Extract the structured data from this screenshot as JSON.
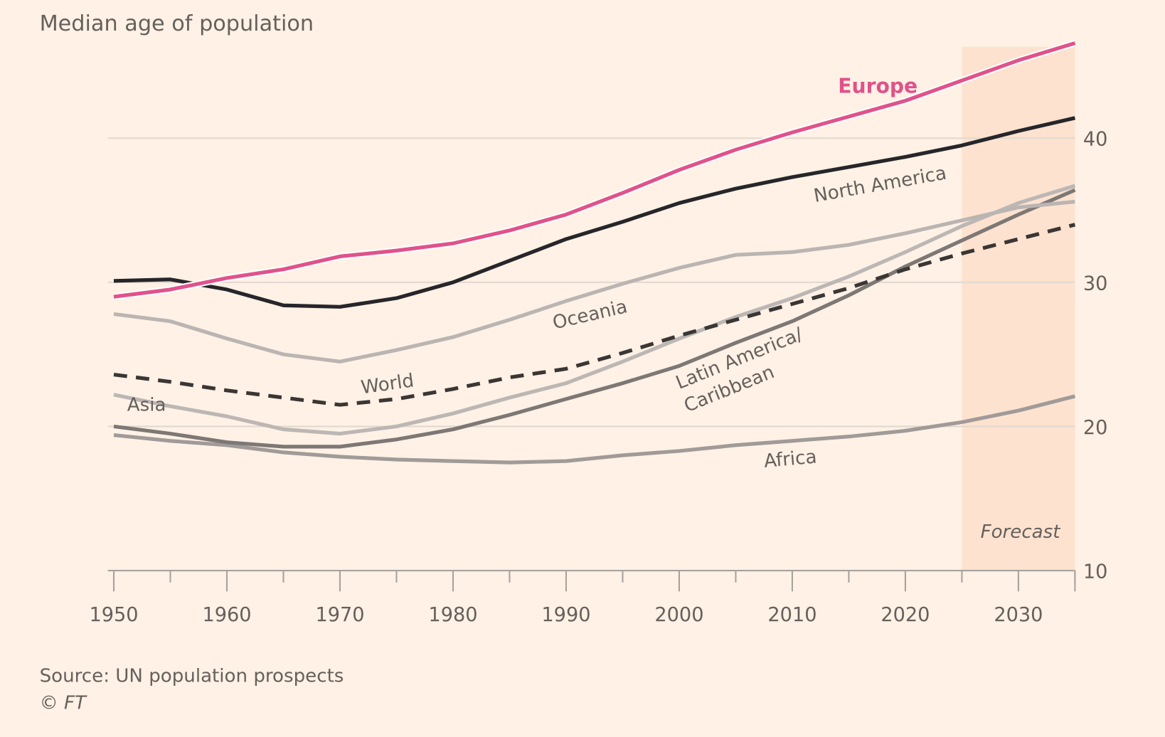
{
  "chart_data": {
    "type": "line",
    "title": "Median age of population",
    "xlabel": "",
    "ylabel": "",
    "xlim": [
      1950,
      2035
    ],
    "ylim": [
      10,
      46
    ],
    "x_ticks": [
      "1950",
      "1960",
      "1970",
      "1980",
      "1990",
      "2000",
      "2010",
      "2020",
      "2030"
    ],
    "y_ticks": [
      "10",
      "20",
      "30",
      "40"
    ],
    "grid": true,
    "x": [
      1950,
      1955,
      1960,
      1965,
      1970,
      1975,
      1980,
      1985,
      1990,
      1995,
      2000,
      2005,
      2010,
      2015,
      2020,
      2025,
      2030,
      2035
    ],
    "series": [
      {
        "name": "Europe",
        "label": "Europe",
        "color": "#e0528a",
        "dashed": false,
        "values": [
          29.0,
          29.5,
          30.3,
          30.9,
          31.8,
          32.2,
          32.7,
          33.6,
          34.7,
          36.2,
          37.8,
          39.2,
          40.4,
          41.5,
          42.6,
          44.0,
          45.4,
          46.6
        ]
      },
      {
        "name": "North America",
        "label": "North America",
        "color": "#26262a",
        "dashed": false,
        "values": [
          30.1,
          30.2,
          29.5,
          28.4,
          28.3,
          28.9,
          30.0,
          31.5,
          33.0,
          34.2,
          35.5,
          36.5,
          37.3,
          38.0,
          38.7,
          39.5,
          40.5,
          41.4
        ]
      },
      {
        "name": "Oceania",
        "label": "Oceania",
        "color": "#bab5b2",
        "dashed": false,
        "values": [
          27.8,
          27.3,
          26.1,
          25.0,
          24.5,
          25.3,
          26.2,
          27.4,
          28.7,
          29.9,
          31.0,
          31.9,
          32.1,
          32.6,
          33.4,
          34.3,
          35.2,
          35.6
        ]
      },
      {
        "name": "World",
        "label": "World",
        "color": "#3a3634",
        "dashed": true,
        "values": [
          23.6,
          23.1,
          22.5,
          22.0,
          21.5,
          21.9,
          22.6,
          23.4,
          24.0,
          25.1,
          26.3,
          27.4,
          28.5,
          29.6,
          30.9,
          32.0,
          33.0,
          34.0
        ]
      },
      {
        "name": "Asia",
        "label": "Asia",
        "color": "#bcb7b4",
        "dashed": false,
        "values": [
          22.2,
          21.4,
          20.7,
          19.8,
          19.5,
          20.0,
          20.9,
          22.0,
          23.0,
          24.5,
          26.1,
          27.6,
          28.9,
          30.4,
          32.1,
          33.9,
          35.5,
          36.7
        ]
      },
      {
        "name": "Latin America/Caribbean",
        "label": "Latin America/",
        "label2": "Caribbean",
        "color": "#7d7875",
        "dashed": false,
        "values": [
          20.0,
          19.5,
          18.9,
          18.6,
          18.6,
          19.1,
          19.8,
          20.8,
          21.9,
          23.0,
          24.2,
          25.8,
          27.3,
          29.1,
          31.1,
          32.9,
          34.7,
          36.4
        ]
      },
      {
        "name": "Africa",
        "label": "Africa",
        "color": "#a09b98",
        "dashed": false,
        "values": [
          19.4,
          19.0,
          18.7,
          18.2,
          17.9,
          17.7,
          17.6,
          17.5,
          17.6,
          18.0,
          18.3,
          18.7,
          19.0,
          19.3,
          19.7,
          20.3,
          21.1,
          22.1
        ]
      }
    ],
    "forecast": {
      "label": "Forecast",
      "from": 2025,
      "to": 2035
    },
    "source": "Source: UN population prospects",
    "credit": "© FT"
  }
}
